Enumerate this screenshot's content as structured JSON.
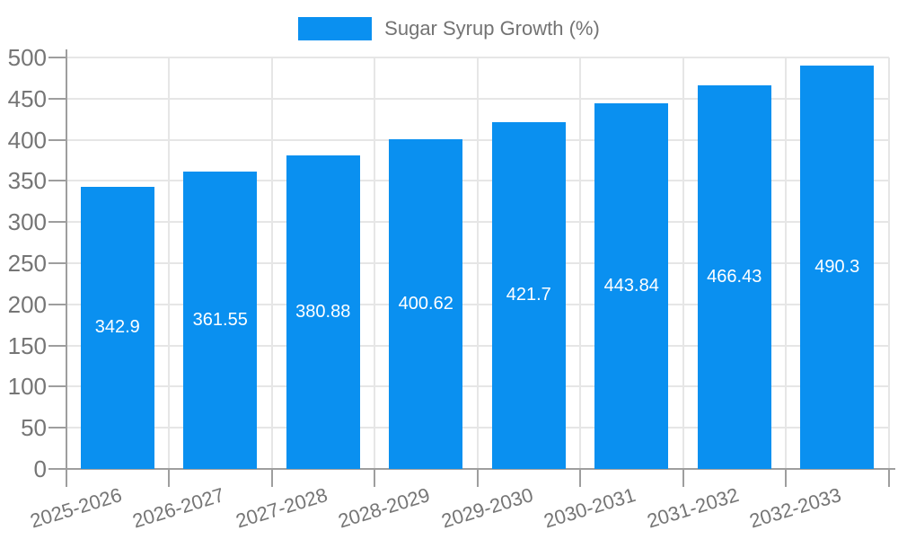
{
  "chart_data": {
    "type": "bar",
    "title": "",
    "categories": [
      "2025-2026",
      "2026-2027",
      "2027-2028",
      "2028-2029",
      "2029-2030",
      "2030-2031",
      "2031-2032",
      "2032-2033"
    ],
    "series": [
      {
        "name": "Sugar Syrup Growth (%)",
        "color": "#0a90f0",
        "values": [
          342.9,
          361.55,
          380.88,
          400.62,
          421.7,
          443.84,
          466.43,
          490.3
        ]
      }
    ],
    "value_labels": [
      "342.9",
      "361.55",
      "380.88",
      "400.62",
      "421.7",
      "443.84",
      "466.43",
      "490.3"
    ],
    "xlabel": "",
    "ylabel": "",
    "ylim": [
      0,
      500
    ],
    "y_tick_step": 50,
    "y_tick_labels": [
      "0",
      "50",
      "100",
      "150",
      "200",
      "250",
      "300",
      "350",
      "400",
      "450",
      "500"
    ],
    "grid": "on",
    "legend_position": "top-center",
    "x_tick_rotation_deg": -17,
    "value_label_position": "inside-center"
  },
  "legend": {
    "label": "Sugar Syrup Growth (%)",
    "swatch_color": "#0a90f0"
  },
  "colors": {
    "bar": "#0a90f0",
    "value_text": "#ffffff",
    "axis_line": "#9e9e9e",
    "grid_line": "#e6e6e6",
    "tick_text": "#757575",
    "legend_text": "#737373",
    "background": "#ffffff"
  }
}
